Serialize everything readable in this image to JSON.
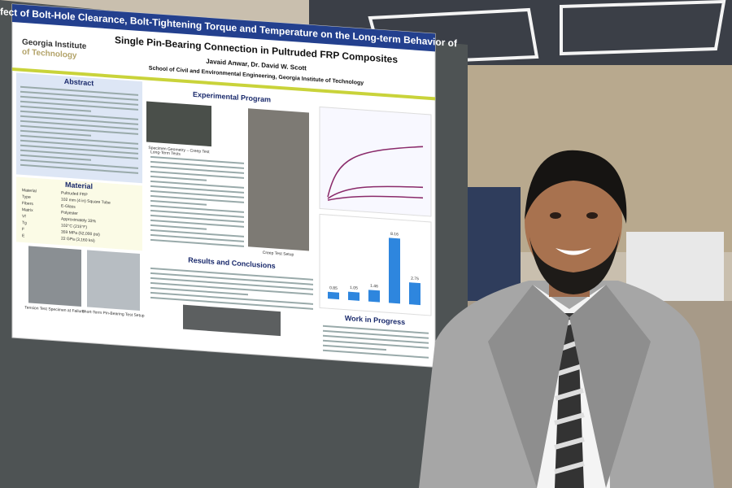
{
  "poster": {
    "title_lines": [
      "Effect of Bolt-Hole Clearance, Bolt-Tightening Torque and Temperature on the Long-term Behavior of",
      "Single Pin-Bearing Connection in Pultruded FRP Composites"
    ],
    "logo_lines": [
      "Georgia Institute",
      "of Technology"
    ],
    "authors": "Javaid Anwar, Dr. David W. Scott",
    "affiliation": "School of Civil and Environmental Engineering, Georgia Institute of Technology",
    "sections": {
      "abstract": "Abstract",
      "experimental": "Experimental Program",
      "material": "Material",
      "results": "Results and Conclusions",
      "progress": "Work in Progress"
    },
    "material_table": [
      [
        "Material",
        "Pultruded FRP"
      ],
      [
        "Type",
        "102 mm (4 in) Square Tube"
      ],
      [
        "Fibers",
        "E-Glass"
      ],
      [
        "Matrix",
        "Polyester"
      ],
      [
        "Vf",
        "Approximately 33%"
      ],
      [
        "Tg",
        "102°C (215°F)"
      ],
      [
        "F",
        "359 MPa (52,000 psi)"
      ],
      [
        "E",
        "22 GPa (3,160 ksi)"
      ]
    ],
    "captions": {
      "geometry": "Specimen Geometry – Creep Test",
      "long_term": "Long-Term Tests",
      "creep_setup": "Creep Test Setup",
      "tension": "Tension Test Specimen at Failure",
      "pin_bearing": "Short-Term Pin-Bearing Test Setup"
    },
    "bar_chart": {
      "values": [
        0.85,
        1.05,
        1.46,
        8.16,
        2.75
      ],
      "color": "#2e86de"
    }
  }
}
